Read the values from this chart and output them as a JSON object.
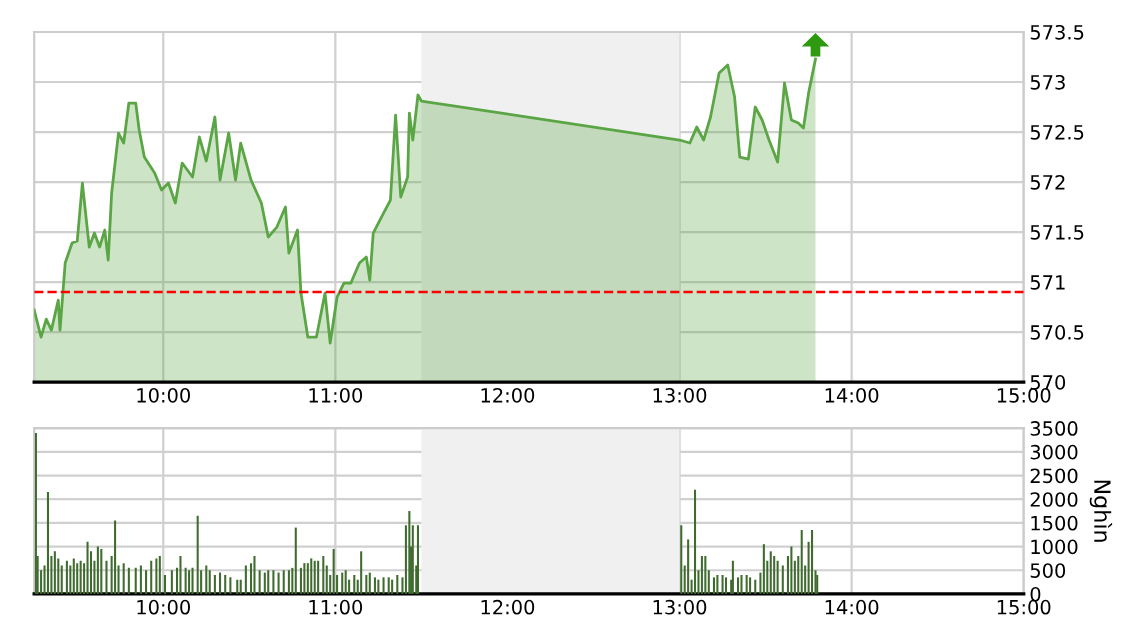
{
  "chart_data": [
    {
      "type": "area",
      "grid": true,
      "xlim": [
        9.25,
        15
      ],
      "ylim": [
        570,
        573.5
      ],
      "xticks": [
        {
          "value": 10,
          "label": "10:00"
        },
        {
          "value": 11,
          "label": "11:00"
        },
        {
          "value": 12,
          "label": "12:00"
        },
        {
          "value": 13,
          "label": "13:00"
        },
        {
          "value": 14,
          "label": "14:00"
        },
        {
          "value": 15,
          "label": "15:00"
        }
      ],
      "yticks": [
        570,
        570.5,
        571,
        571.5,
        572,
        572.5,
        573,
        573.5
      ],
      "bands": [
        {
          "axis": "x",
          "from": 11.5,
          "to": 13,
          "color": "#f0f0f0"
        }
      ],
      "ref_lines": [
        {
          "axis": "y",
          "value": 570.9,
          "color": "#ff0000",
          "line_style": "dashed"
        }
      ],
      "series": [
        {
          "color": "#5aa544",
          "x": [
            9.25,
            9.29,
            9.32,
            9.35,
            9.39,
            9.4,
            9.43,
            9.47,
            9.5,
            9.53,
            9.57,
            9.6,
            9.63,
            9.66,
            9.68,
            9.7,
            9.74,
            9.77,
            9.8,
            9.84,
            9.86,
            9.89,
            9.95,
            9.99,
            10.03,
            10.07,
            10.11,
            10.17,
            10.21,
            10.25,
            10.3,
            10.33,
            10.38,
            10.42,
            10.45,
            10.51,
            10.57,
            10.61,
            10.66,
            10.71,
            10.73,
            10.78,
            10.8,
            10.84,
            10.89,
            10.94,
            10.97,
            11.01,
            11.05,
            11.09,
            11.14,
            11.18,
            11.2,
            11.22,
            11.28,
            11.32,
            11.35,
            11.38,
            11.42,
            11.43,
            11.45,
            11.48,
            11.5,
            13.0,
            13.06,
            13.1,
            13.14,
            13.18,
            13.23,
            13.28,
            13.32,
            13.35,
            13.4,
            13.44,
            13.48,
            13.52,
            13.57,
            13.61,
            13.65,
            13.69,
            13.72,
            13.75,
            13.79
          ],
          "values": [
            570.72,
            570.45,
            570.63,
            570.52,
            570.82,
            570.52,
            571.19,
            571.39,
            571.41,
            571.99,
            571.35,
            571.49,
            571.35,
            571.52,
            571.22,
            571.89,
            572.49,
            572.39,
            572.79,
            572.79,
            572.52,
            572.25,
            572.09,
            571.92,
            571.99,
            571.79,
            572.19,
            572.05,
            572.45,
            572.21,
            572.65,
            572.02,
            572.49,
            572.02,
            572.39,
            572.02,
            571.79,
            571.45,
            571.55,
            571.75,
            571.29,
            571.52,
            570.89,
            570.45,
            570.45,
            570.89,
            570.39,
            570.85,
            570.99,
            570.99,
            571.19,
            571.25,
            571.02,
            571.49,
            571.69,
            571.82,
            572.67,
            571.85,
            572.05,
            572.69,
            572.42,
            572.87,
            572.81,
            572.42,
            572.39,
            572.55,
            572.42,
            572.65,
            573.09,
            573.17,
            572.85,
            572.25,
            572.23,
            572.75,
            572.62,
            572.42,
            572.2,
            572.99,
            572.62,
            572.59,
            572.54,
            572.89,
            573.23
          ]
        }
      ]
    },
    {
      "type": "bar",
      "grid": true,
      "ylabel": "Nghìn",
      "xlim": [
        9.25,
        15
      ],
      "ylim": [
        0,
        3500
      ],
      "xticks": [
        {
          "value": 10,
          "label": "10:00"
        },
        {
          "value": 11,
          "label": "11:00"
        },
        {
          "value": 12,
          "label": "12:00"
        },
        {
          "value": 13,
          "label": "13:00"
        },
        {
          "value": 14,
          "label": "14:00"
        },
        {
          "value": 15,
          "label": "15:00"
        }
      ],
      "yticks": [
        0,
        500,
        1000,
        1500,
        2000,
        2500,
        3000,
        3500
      ],
      "bands": [
        {
          "axis": "x",
          "from": 11.5,
          "to": 13,
          "color": "#f0f0f0"
        }
      ],
      "series": [
        {
          "color": "#3f6b2f",
          "x": [
            9.26,
            9.27,
            9.29,
            9.31,
            9.33,
            9.35,
            9.37,
            9.39,
            9.41,
            9.44,
            9.46,
            9.48,
            9.5,
            9.52,
            9.54,
            9.56,
            9.58,
            9.6,
            9.62,
            9.64,
            9.67,
            9.7,
            9.72,
            9.74,
            9.77,
            9.8,
            9.84,
            9.87,
            9.9,
            9.93,
            9.96,
            9.98,
            10.01,
            10.05,
            10.08,
            10.1,
            10.13,
            10.15,
            10.17,
            10.2,
            10.22,
            10.25,
            10.27,
            10.3,
            10.33,
            10.36,
            10.39,
            10.43,
            10.45,
            10.48,
            10.51,
            10.53,
            10.56,
            10.59,
            10.61,
            10.64,
            10.67,
            10.7,
            10.73,
            10.75,
            10.77,
            10.8,
            10.82,
            10.84,
            10.86,
            10.88,
            10.9,
            10.93,
            10.95,
            10.97,
            10.99,
            11.01,
            11.04,
            11.06,
            11.08,
            11.11,
            11.13,
            11.15,
            11.18,
            11.2,
            11.23,
            11.25,
            11.28,
            11.31,
            11.33,
            11.36,
            11.39,
            11.41,
            11.43,
            11.44,
            11.45,
            11.47,
            11.48,
            13.01,
            13.03,
            13.05,
            13.07,
            13.09,
            13.11,
            13.13,
            13.15,
            13.17,
            13.2,
            13.22,
            13.25,
            13.27,
            13.3,
            13.31,
            13.34,
            13.36,
            13.39,
            13.41,
            13.44,
            13.47,
            13.49,
            13.51,
            13.53,
            13.55,
            13.57,
            13.6,
            13.63,
            13.65,
            13.67,
            13.69,
            13.71,
            13.73,
            13.75,
            13.77,
            13.79,
            13.8
          ],
          "values": [
            3400,
            800,
            500,
            600,
            2150,
            800,
            900,
            750,
            600,
            700,
            600,
            750,
            650,
            700,
            650,
            1100,
            900,
            700,
            1000,
            950,
            700,
            800,
            1550,
            600,
            650,
            550,
            550,
            600,
            500,
            700,
            750,
            800,
            400,
            500,
            550,
            800,
            550,
            500,
            550,
            1650,
            500,
            600,
            500,
            400,
            450,
            400,
            350,
            300,
            300,
            600,
            650,
            800,
            500,
            450,
            500,
            500,
            450,
            500,
            500,
            550,
            1400,
            550,
            650,
            650,
            750,
            700,
            700,
            800,
            600,
            400,
            950,
            400,
            450,
            500,
            300,
            400,
            300,
            900,
            400,
            450,
            350,
            300,
            350,
            350,
            300,
            400,
            350,
            1450,
            1750,
            1000,
            1450,
            600,
            1450,
            1450,
            600,
            1150,
            300,
            2200,
            500,
            800,
            800,
            500,
            350,
            400,
            400,
            350,
            300,
            700,
            350,
            400,
            400,
            350,
            300,
            450,
            1050,
            700,
            900,
            800,
            700,
            600,
            800,
            1000,
            700,
            800,
            1350,
            600,
            1100,
            1350,
            500,
            400
          ]
        }
      ]
    }
  ]
}
